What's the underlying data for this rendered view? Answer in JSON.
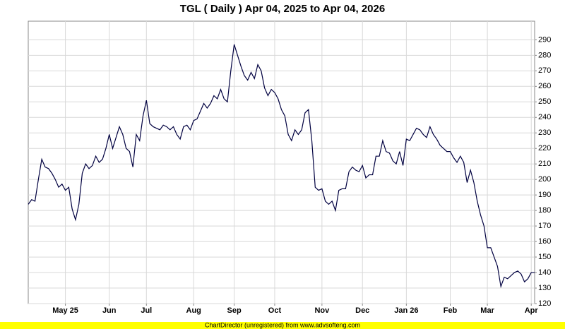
{
  "chart_data": {
    "type": "line",
    "title": "TGL ( Daily ) Apr 04, 2025 to Apr 04, 2026",
    "footer": "ChartDirector (unregistered) from www.advsofteng.com",
    "categories": [
      null,
      null,
      null,
      null,
      null,
      null,
      null,
      null,
      null,
      null,
      null,
      "May 25",
      null,
      null,
      null,
      null,
      null,
      null,
      null,
      null,
      null,
      null,
      null,
      null,
      "Jun",
      null,
      null,
      null,
      null,
      null,
      null,
      null,
      null,
      null,
      null,
      "Jul",
      null,
      null,
      null,
      null,
      null,
      null,
      null,
      null,
      null,
      null,
      null,
      null,
      null,
      "Aug",
      null,
      null,
      null,
      null,
      null,
      null,
      null,
      null,
      null,
      null,
      null,
      "Sep",
      null,
      null,
      null,
      null,
      null,
      null,
      null,
      null,
      null,
      null,
      null,
      "Oct",
      null,
      null,
      null,
      null,
      null,
      null,
      null,
      null,
      null,
      null,
      null,
      null,
      null,
      "Nov",
      null,
      null,
      null,
      null,
      null,
      null,
      null,
      null,
      null,
      null,
      null,
      "Dec",
      null,
      null,
      null,
      null,
      null,
      null,
      null,
      null,
      null,
      null,
      null,
      null,
      "Jan 26",
      null,
      null,
      null,
      null,
      null,
      null,
      null,
      null,
      null,
      null,
      null,
      null,
      "Feb",
      null,
      null,
      null,
      null,
      null,
      null,
      null,
      null,
      null,
      null,
      "Mar",
      null,
      null,
      null,
      null,
      null,
      null,
      null,
      null,
      null,
      null,
      null,
      null,
      "Apr",
      null
    ],
    "values": [
      184,
      187,
      186,
      200,
      213,
      208,
      207,
      204,
      200,
      195,
      197,
      193,
      195,
      181,
      174,
      184,
      204,
      210,
      207,
      209,
      215,
      211,
      213,
      220,
      229,
      220,
      227,
      234,
      229,
      220,
      218,
      208,
      229,
      225,
      241,
      251,
      236,
      234,
      233,
      232,
      235,
      234,
      232,
      234,
      229,
      226,
      234,
      235,
      232,
      238,
      239,
      244,
      249,
      246,
      249,
      254,
      252,
      258,
      252,
      250,
      270,
      287,
      280,
      273,
      267,
      264,
      269,
      265,
      274,
      270,
      259,
      254,
      258,
      256,
      252,
      245,
      241,
      229,
      225,
      232,
      229,
      232,
      243,
      245,
      225,
      195,
      193,
      194,
      186,
      184,
      186,
      180,
      193,
      194,
      194,
      205,
      208,
      206,
      205,
      209,
      201,
      203,
      203,
      215,
      215,
      225,
      218,
      217,
      212,
      210,
      218,
      209,
      226,
      225,
      229,
      233,
      232,
      229,
      227,
      234,
      229,
      226,
      222,
      220,
      218,
      218,
      214,
      211,
      215,
      211,
      198,
      206,
      198,
      186,
      177,
      170,
      156,
      156,
      150,
      144,
      131,
      137,
      136,
      138,
      140,
      141,
      139,
      134,
      136,
      140,
      140
    ],
    "color": "#000040",
    "ylim": [
      120,
      302
    ],
    "yticks": [
      120,
      130,
      140,
      150,
      160,
      170,
      180,
      190,
      200,
      210,
      220,
      230,
      240,
      250,
      260,
      270,
      280,
      290
    ],
    "grid": true
  }
}
